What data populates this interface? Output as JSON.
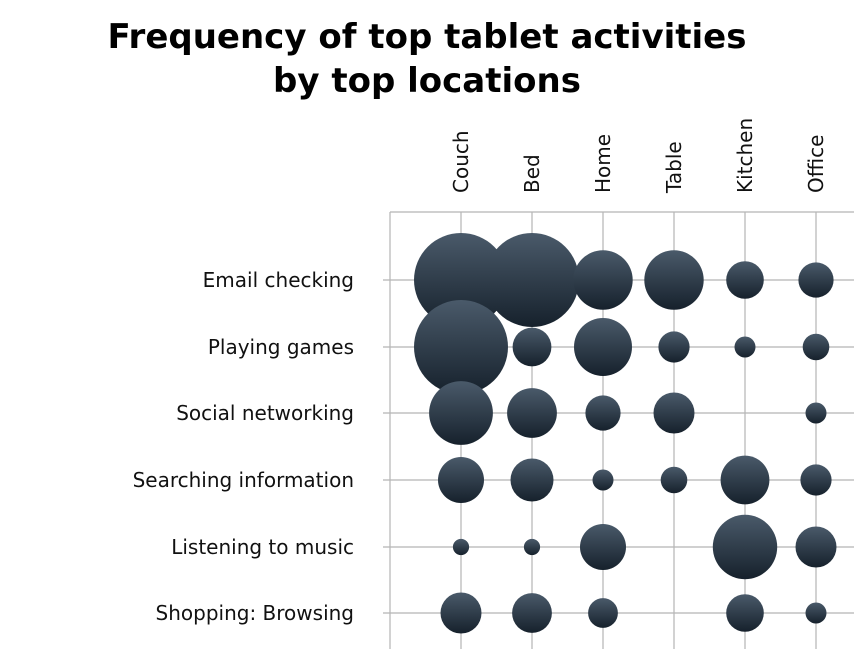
{
  "chart_data": {
    "type": "bubble-matrix",
    "title_lines": [
      "Frequency of top tablet activities",
      "by top locations"
    ],
    "columns": [
      "Couch",
      "Bed",
      "Home",
      "Table",
      "Kitchen",
      "Office"
    ],
    "rows": [
      "Email checking",
      "Playing games",
      "Social networking",
      "Searching information",
      "Listening to music",
      "Shopping: Browsing"
    ],
    "values": [
      [
        100,
        100,
        40,
        40,
        16,
        14
      ],
      [
        100,
        17,
        38,
        11,
        5,
        8
      ],
      [
        46,
        28,
        14,
        19,
        0,
        5
      ],
      [
        24,
        21,
        5,
        8,
        27,
        11
      ],
      [
        3,
        3,
        24,
        0,
        47,
        19
      ],
      [
        19,
        18,
        10,
        0,
        16,
        5
      ]
    ],
    "bubble_color": "#233140",
    "bubble_highlight": "#4a5a6a",
    "grid": true
  }
}
